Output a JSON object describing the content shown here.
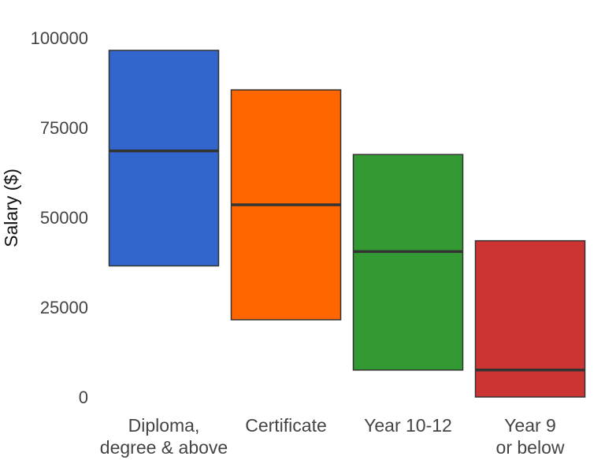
{
  "chart_data": {
    "type": "box",
    "ylabel": "Salary ($)",
    "xlabel": "",
    "ylim": [
      0,
      100000
    ],
    "yticks": [
      0,
      25000,
      50000,
      75000,
      100000
    ],
    "ytick_labels": [
      "0",
      "25000",
      "50000",
      "75000",
      "100000"
    ],
    "grid": false,
    "legend": "none",
    "categories": [
      {
        "label_lines": [
          "Diploma,",
          "degree & above"
        ],
        "low": 36500,
        "median": 68500,
        "high": 96500,
        "color": "#3366cc"
      },
      {
        "label_lines": [
          "Certificate"
        ],
        "low": 21500,
        "median": 53500,
        "high": 85500,
        "color": "#ff6600"
      },
      {
        "label_lines": [
          "Year 10-12"
        ],
        "low": 7500,
        "median": 40500,
        "high": 67500,
        "color": "#339933"
      },
      {
        "label_lines": [
          "Year 9",
          "or below"
        ],
        "low": 0,
        "median": 7500,
        "high": 43500,
        "color": "#cc3333"
      }
    ]
  }
}
